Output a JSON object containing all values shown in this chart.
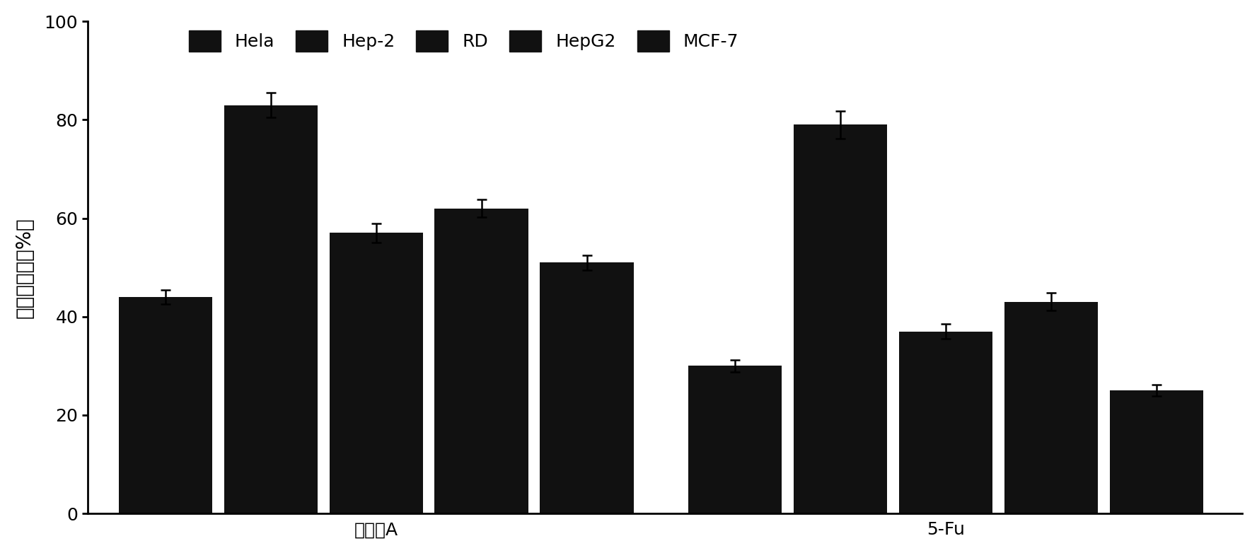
{
  "groups": [
    "化合物A",
    "5-Fu"
  ],
  "cell_lines": [
    "Hela",
    "Hep-2",
    "RD",
    "HepG2",
    "MCF-7"
  ],
  "values": {
    "化合物A": [
      44,
      83,
      57,
      62,
      51
    ],
    "5-Fu": [
      30,
      79,
      37,
      43,
      25
    ]
  },
  "errors": {
    "化合物A": [
      1.5,
      2.5,
      2.0,
      1.8,
      1.5
    ],
    "5-Fu": [
      1.2,
      2.8,
      1.5,
      1.8,
      1.2
    ]
  },
  "bar_color": "#111111",
  "bar_width": 0.12,
  "ylabel": "活性抑制率（%）",
  "ylim": [
    0,
    100
  ],
  "yticks": [
    0,
    20,
    40,
    60,
    80,
    100
  ],
  "legend_labels": [
    "Hela",
    "Hep-2",
    "RD",
    "HepG2",
    "MCF-7"
  ],
  "background_color": "#ffffff",
  "tick_fontsize": 18,
  "label_fontsize": 20,
  "legend_fontsize": 18,
  "xtick_fontsize": 18
}
